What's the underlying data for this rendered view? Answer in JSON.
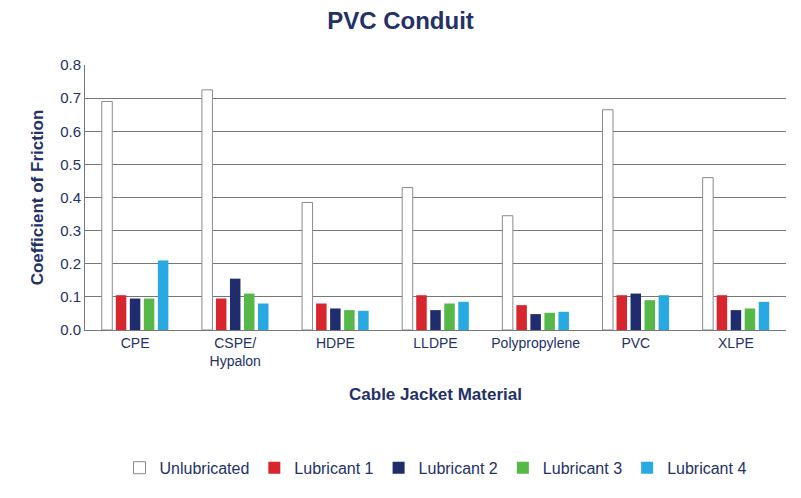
{
  "chart_data": {
    "type": "bar",
    "title": "PVC Conduit",
    "x_label": "Cable Jacket Material",
    "y_label": "Coefficient of Friction",
    "categories": [
      "CPE",
      "CSPE/\nHypalon",
      "HDPE",
      "LLDPE",
      "Polypropylene",
      "PVC",
      "XLPE"
    ],
    "series": [
      {
        "name": "Unlubricated",
        "color": "#ffffff",
        "values": [
          0.69,
          0.725,
          0.385,
          0.43,
          0.345,
          0.665,
          0.46
        ]
      },
      {
        "name": "Lubricant 1",
        "color": "#d7262e",
        "values": [
          0.105,
          0.095,
          0.08,
          0.105,
          0.075,
          0.105,
          0.105
        ]
      },
      {
        "name": "Lubricant 2",
        "color": "#1f2d6e",
        "values": [
          0.095,
          0.155,
          0.065,
          0.06,
          0.048,
          0.11,
          0.06
        ]
      },
      {
        "name": "Lubricant 3",
        "color": "#55b848",
        "values": [
          0.095,
          0.11,
          0.06,
          0.08,
          0.052,
          0.09,
          0.065
        ]
      },
      {
        "name": "Lubricant 4",
        "color": "#29a9e1",
        "values": [
          0.21,
          0.08,
          0.058,
          0.085,
          0.055,
          0.105,
          0.085
        ]
      }
    ],
    "ylim": [
      0,
      0.8
    ],
    "yticks": [
      {
        "value": 0,
        "label": "0.0"
      },
      0.1,
      0.2,
      0.3,
      0.4,
      0.5,
      0.6,
      0.7,
      0.8
    ],
    "grid": true,
    "legend": "bottom"
  }
}
